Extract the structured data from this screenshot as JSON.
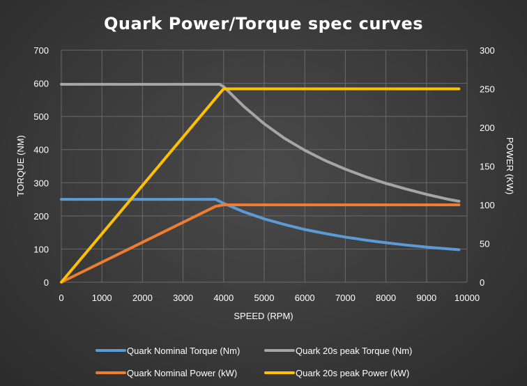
{
  "chart_data": {
    "type": "line",
    "title": "Quark Power/Torque spec curves",
    "xlabel": "SPEED (RPM)",
    "ylabel": "TORQUE (NM)",
    "y2label": "POWER (KW)",
    "xlim": [
      0,
      10000
    ],
    "ylim": [
      0,
      700
    ],
    "y2lim": [
      0,
      300
    ],
    "x_ticks": [
      0,
      1000,
      2000,
      3000,
      4000,
      5000,
      6000,
      7000,
      8000,
      9000,
      10000
    ],
    "y_ticks": [
      0,
      100,
      200,
      300,
      400,
      500,
      600,
      700
    ],
    "y2_ticks": [
      0,
      50,
      100,
      150,
      200,
      250,
      300
    ],
    "grid": true,
    "legend_position": "bottom",
    "series": [
      {
        "name": "Quark Nominal Torque (Nm)",
        "axis": "left",
        "color": "#5b9bd5",
        "x": [
          0,
          3800,
          4000,
          4500,
          5000,
          5500,
          6000,
          6500,
          7000,
          7500,
          8000,
          8500,
          9000,
          9500,
          9800
        ],
        "y": [
          250,
          250,
          238,
          212,
          191,
          174,
          159,
          147,
          136,
          127,
          119,
          112,
          106,
          101,
          98
        ]
      },
      {
        "name": "Quark 20s peak Torque (Nm)",
        "axis": "left",
        "color": "#a5a5a5",
        "x": [
          0,
          3900,
          4000,
          4500,
          5000,
          5500,
          6000,
          6500,
          7000,
          7500,
          8000,
          8500,
          9000,
          9500,
          9800
        ],
        "y": [
          597,
          597,
          590,
          530,
          478,
          434,
          398,
          367,
          341,
          318,
          298,
          281,
          265,
          251,
          244
        ]
      },
      {
        "name": "Quark Nominal Power (kW)",
        "axis": "right",
        "color": "#ed7d31",
        "x": [
          0,
          3800,
          4000,
          9800
        ],
        "y": [
          0,
          98,
          100,
          100
        ]
      },
      {
        "name": "Quark 20s peak Power (kW)",
        "axis": "right",
        "color": "#ffc000",
        "x": [
          0,
          3900,
          4000,
          9800
        ],
        "y": [
          0,
          244,
          250,
          250
        ]
      }
    ]
  }
}
